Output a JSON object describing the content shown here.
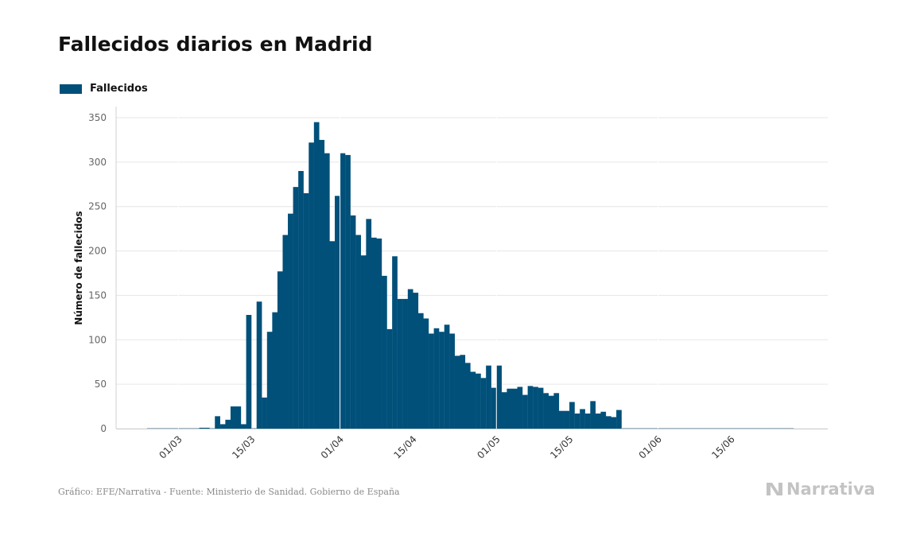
{
  "title": "Fallecidos diarios en Madrid",
  "legend": {
    "label": "Fallecidos",
    "color": "#00507a"
  },
  "footer": {
    "source": "Gráfico: EFE/Narrativa - Fuente: Ministerio de Sanidad. Gobierno de España",
    "brand": "Narrativa",
    "brand_icon": "narrativa-logo-icon"
  },
  "chart_data": {
    "type": "bar",
    "title": "Fallecidos diarios en Madrid",
    "ylabel": "Número de fallecidos",
    "xlabel": "",
    "ylim": [
      0,
      350
    ],
    "yticks": [
      0,
      50,
      100,
      150,
      200,
      250,
      300,
      350
    ],
    "x_range": [
      "2020-02-24",
      "2020-06-26"
    ],
    "xticks": [
      {
        "date": "2020-03-01",
        "label": "01/03"
      },
      {
        "date": "2020-03-15",
        "label": "15/03"
      },
      {
        "date": "2020-04-01",
        "label": "01/04"
      },
      {
        "date": "2020-04-15",
        "label": "15/04"
      },
      {
        "date": "2020-05-01",
        "label": "01/05"
      },
      {
        "date": "2020-05-15",
        "label": "15/05"
      },
      {
        "date": "2020-06-01",
        "label": "01/06"
      },
      {
        "date": "2020-06-15",
        "label": "15/06"
      }
    ],
    "grid": true,
    "legend_position": "top-left",
    "series": [
      {
        "name": "Fallecidos",
        "color": "#00507a",
        "x": [
          "2020-02-24",
          "2020-02-25",
          "2020-02-26",
          "2020-02-27",
          "2020-02-28",
          "2020-02-29",
          "2020-03-01",
          "2020-03-02",
          "2020-03-03",
          "2020-03-04",
          "2020-03-05",
          "2020-03-06",
          "2020-03-07",
          "2020-03-08",
          "2020-03-09",
          "2020-03-10",
          "2020-03-11",
          "2020-03-12",
          "2020-03-13",
          "2020-03-14",
          "2020-03-15",
          "2020-03-16",
          "2020-03-17",
          "2020-03-18",
          "2020-03-19",
          "2020-03-20",
          "2020-03-21",
          "2020-03-22",
          "2020-03-23",
          "2020-03-24",
          "2020-03-25",
          "2020-03-26",
          "2020-03-27",
          "2020-03-28",
          "2020-03-29",
          "2020-03-30",
          "2020-03-31",
          "2020-04-01",
          "2020-04-02",
          "2020-04-03",
          "2020-04-04",
          "2020-04-05",
          "2020-04-06",
          "2020-04-07",
          "2020-04-08",
          "2020-04-09",
          "2020-04-10",
          "2020-04-11",
          "2020-04-12",
          "2020-04-13",
          "2020-04-14",
          "2020-04-15",
          "2020-04-16",
          "2020-04-17",
          "2020-04-18",
          "2020-04-19",
          "2020-04-20",
          "2020-04-21",
          "2020-04-22",
          "2020-04-23",
          "2020-04-24",
          "2020-04-25",
          "2020-04-26",
          "2020-04-27",
          "2020-04-28",
          "2020-04-29",
          "2020-04-30",
          "2020-05-01",
          "2020-05-02",
          "2020-05-03",
          "2020-05-04",
          "2020-05-05",
          "2020-05-06",
          "2020-05-07",
          "2020-05-08",
          "2020-05-09",
          "2020-05-10",
          "2020-05-11",
          "2020-05-12",
          "2020-05-13",
          "2020-05-14",
          "2020-05-15",
          "2020-05-16",
          "2020-05-17",
          "2020-05-18",
          "2020-05-19",
          "2020-05-20",
          "2020-05-21",
          "2020-05-22",
          "2020-05-23",
          "2020-05-24",
          "2020-05-25",
          "2020-05-26",
          "2020-05-27",
          "2020-05-28",
          "2020-05-29",
          "2020-05-30",
          "2020-05-31",
          "2020-06-01",
          "2020-06-02",
          "2020-06-03",
          "2020-06-04",
          "2020-06-05",
          "2020-06-06",
          "2020-06-07",
          "2020-06-08",
          "2020-06-09",
          "2020-06-10",
          "2020-06-11",
          "2020-06-12",
          "2020-06-13",
          "2020-06-14",
          "2020-06-15",
          "2020-06-16",
          "2020-06-17",
          "2020-06-18",
          "2020-06-19",
          "2020-06-20",
          "2020-06-21",
          "2020-06-22",
          "2020-06-23",
          "2020-06-24",
          "2020-06-25",
          "2020-06-26"
        ],
        "values": [
          0,
          0,
          0,
          0,
          0,
          0,
          0,
          0,
          0,
          0,
          1,
          1,
          0,
          14,
          5,
          10,
          25,
          25,
          5,
          128,
          0,
          143,
          35,
          109,
          131,
          177,
          218,
          242,
          272,
          290,
          265,
          322,
          345,
          325,
          310,
          211,
          262,
          310,
          308,
          240,
          218,
          195,
          236,
          215,
          214,
          172,
          112,
          194,
          146,
          146,
          157,
          153,
          130,
          124,
          107,
          113,
          109,
          117,
          107,
          82,
          83,
          74,
          64,
          62,
          57,
          71,
          46,
          71,
          41,
          45,
          45,
          47,
          38,
          48,
          47,
          46,
          40,
          37,
          40,
          20,
          20,
          30,
          17,
          22,
          17,
          31,
          17,
          19,
          14,
          13,
          21,
          0,
          0,
          0,
          0,
          0,
          0,
          0,
          0,
          0,
          0,
          0,
          0,
          0,
          0,
          0,
          0,
          0,
          0,
          0,
          0,
          0,
          0,
          0,
          0,
          0,
          0,
          0,
          0,
          0,
          0,
          0,
          0,
          0
        ]
      }
    ]
  }
}
